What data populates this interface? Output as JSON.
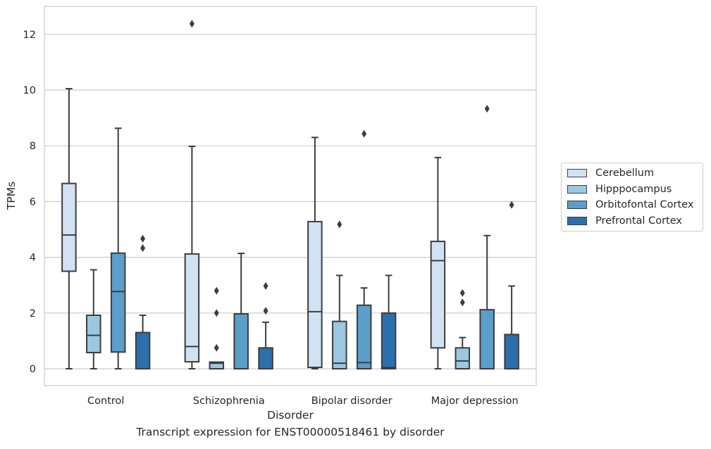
{
  "caption": "Transcript expression for ENST00000518461 by disorder",
  "chart_data": {
    "type": "box",
    "xlabel": "Disorder",
    "ylabel": "TPMs",
    "ylim": [
      -0.6,
      13.0
    ],
    "yticks": [
      0,
      2,
      4,
      6,
      8,
      10,
      12
    ],
    "grid": "horizontal",
    "legend_position": "right",
    "categories": [
      "Control",
      "Schizophrenia",
      "Bipolar disorder",
      "Major depression"
    ],
    "series": [
      {
        "name": "Cerebellum",
        "color": "#d1e2f2",
        "boxes": [
          {
            "whisker_low": 0.0,
            "q1": 3.5,
            "median": 4.8,
            "q3": 6.65,
            "whisker_high": 10.05,
            "outliers": []
          },
          {
            "whisker_low": 0.0,
            "q1": 0.25,
            "median": 0.8,
            "q3": 4.12,
            "whisker_high": 7.98,
            "outliers": [
              12.38
            ]
          },
          {
            "whisker_low": 0.0,
            "q1": 0.05,
            "median": 2.05,
            "q3": 5.28,
            "whisker_high": 8.3,
            "outliers": []
          },
          {
            "whisker_low": 0.0,
            "q1": 0.75,
            "median": 3.88,
            "q3": 4.57,
            "whisker_high": 7.58,
            "outliers": []
          }
        ]
      },
      {
        "name": "Hipppocampus",
        "color": "#9ac8e0",
        "boxes": [
          {
            "whisker_low": 0.0,
            "q1": 0.58,
            "median": 1.2,
            "q3": 1.92,
            "whisker_high": 3.55,
            "outliers": []
          },
          {
            "whisker_low": 0.0,
            "q1": 0.0,
            "median": 0.2,
            "q3": 0.24,
            "whisker_high": 0.24,
            "outliers": [
              0.75,
              2.0,
              2.8
            ]
          },
          {
            "whisker_low": 0.0,
            "q1": 0.0,
            "median": 0.2,
            "q3": 1.7,
            "whisker_high": 3.35,
            "outliers": [
              5.18
            ]
          },
          {
            "whisker_low": 0.0,
            "q1": 0.0,
            "median": 0.28,
            "q3": 0.75,
            "whisker_high": 1.12,
            "outliers": [
              2.38,
              2.72
            ]
          }
        ]
      },
      {
        "name": "Orbitofontal Cortex",
        "color": "#5a9ec9",
        "boxes": [
          {
            "whisker_low": 0.0,
            "q1": 0.6,
            "median": 2.77,
            "q3": 4.15,
            "whisker_high": 8.63,
            "outliers": []
          },
          {
            "whisker_low": 0.0,
            "q1": 0.0,
            "median": 0.0,
            "q3": 1.97,
            "whisker_high": 4.14,
            "outliers": []
          },
          {
            "whisker_low": 0.0,
            "q1": 0.0,
            "median": 0.22,
            "q3": 2.28,
            "whisker_high": 2.9,
            "outliers": [
              8.43
            ]
          },
          {
            "whisker_low": 0.0,
            "q1": 0.0,
            "median": 0.0,
            "q3": 2.12,
            "whisker_high": 4.78,
            "outliers": [
              9.33
            ]
          }
        ]
      },
      {
        "name": "Prefrontal Cortex",
        "color": "#2c6fae",
        "boxes": [
          {
            "whisker_low": 0.0,
            "q1": 0.0,
            "median": 0.0,
            "q3": 1.3,
            "whisker_high": 1.92,
            "outliers": [
              4.33,
              4.67
            ]
          },
          {
            "whisker_low": 0.0,
            "q1": 0.0,
            "median": 0.0,
            "q3": 0.75,
            "whisker_high": 1.67,
            "outliers": [
              2.08,
              2.97
            ]
          },
          {
            "whisker_low": 0.0,
            "q1": 0.0,
            "median": 0.05,
            "q3": 2.0,
            "whisker_high": 3.35,
            "outliers": []
          },
          {
            "whisker_low": 0.0,
            "q1": 0.0,
            "median": 0.0,
            "q3": 1.23,
            "whisker_high": 2.97,
            "outliers": [
              5.88
            ]
          }
        ]
      }
    ]
  }
}
